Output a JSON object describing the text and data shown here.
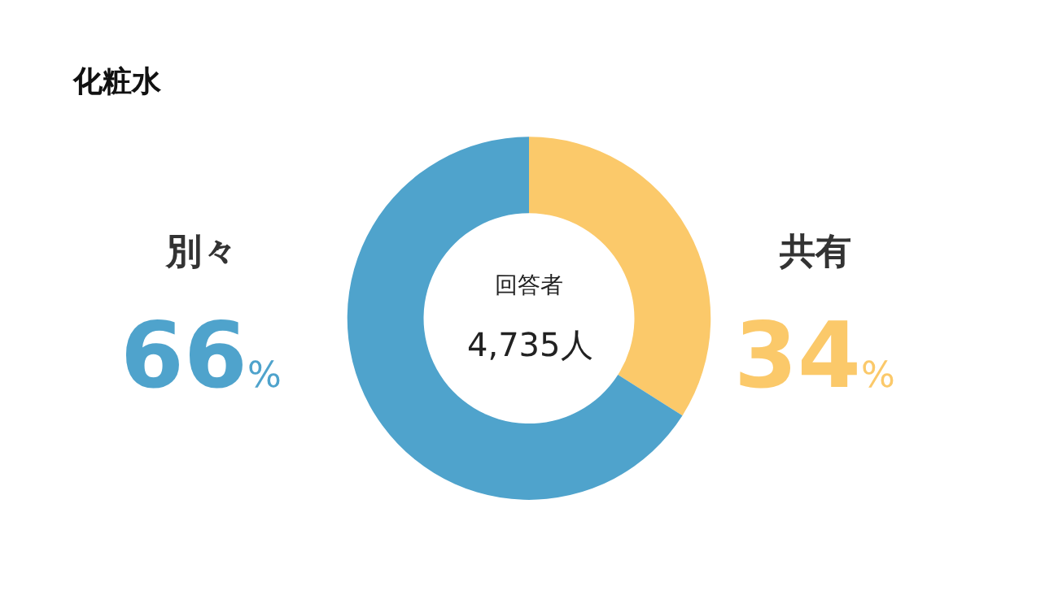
{
  "chart_data": {
    "type": "donut",
    "title": "化粧水",
    "categories": [
      "共有",
      "別々"
    ],
    "values": [
      34,
      66
    ],
    "colors": [
      "#fbc96a",
      "#4fa3cc"
    ],
    "value_labels": [
      "34%",
      "66%"
    ],
    "annotations": [
      "回答者",
      "4,735人"
    ]
  }
}
